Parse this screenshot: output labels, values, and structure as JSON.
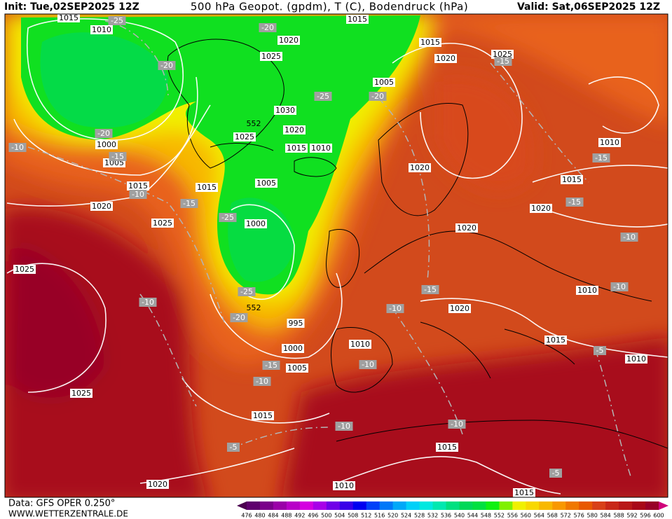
{
  "header": {
    "init": "Init: Tue,02SEP2025 12Z",
    "title": "500 hPa Geopot. (gpdm), T (C), Bodendruck (hPa)",
    "valid": "Valid: Sat,06SEP2025 12Z"
  },
  "footer": {
    "data_source": "Data: GFS OPER 0.250°",
    "website": "WWW.WETTERZENTRALE.DE"
  },
  "colorbar": {
    "labels": [
      476,
      480,
      484,
      488,
      492,
      496,
      500,
      504,
      508,
      512,
      516,
      520,
      524,
      528,
      532,
      536,
      540,
      544,
      548,
      552,
      556,
      560,
      564,
      568,
      572,
      576,
      580,
      584,
      588,
      592,
      596,
      600
    ],
    "colors": [
      "#4b0050",
      "#5f006e",
      "#7a008a",
      "#9a00a8",
      "#b800c8",
      "#d400e0",
      "#a800e8",
      "#7000e8",
      "#3a00e8",
      "#0000f0",
      "#0040f8",
      "#0078f8",
      "#00a8f8",
      "#00d0f8",
      "#00e8e0",
      "#00e8b0",
      "#00e080",
      "#00d858",
      "#00e040",
      "#10f010",
      "#80f000",
      "#f0f000",
      "#f8d800",
      "#f8b800",
      "#f89800",
      "#f07800",
      "#e85800",
      "#d84018",
      "#c82818",
      "#b81818",
      "#a80818",
      "#980028",
      "#d0007a"
    ]
  },
  "map": {
    "isobar_labels": [
      "1015",
      "1010",
      "1015",
      "1020",
      "1025",
      "1015",
      "1020",
      "1025",
      "1005",
      "1030",
      "1020",
      "1025",
      "1015",
      "1010",
      "1000",
      "1005",
      "1015",
      "1015",
      "1005",
      "1020",
      "1025",
      "1000",
      "1020",
      "1020",
      "1015",
      "1010",
      "1020",
      "1025",
      "1010",
      "1020",
      "995",
      "1000",
      "1005",
      "1010",
      "1015",
      "1010",
      "1025",
      "1015",
      "1015",
      "1020",
      "1010",
      "1015"
    ],
    "temperature_labels": [
      "-25",
      "-20",
      "-20",
      "-15",
      "-10",
      "-10",
      "-15",
      "-25",
      "-25",
      "-20",
      "-15",
      "-15",
      "-15",
      "-10",
      "-25",
      "-20",
      "-10",
      "-15",
      "-10",
      "-10",
      "-15",
      "-10",
      "-10",
      "-5",
      "-10",
      "-10",
      "-5",
      "-5",
      "-20"
    ],
    "height_labels": [
      "552",
      "552"
    ]
  }
}
